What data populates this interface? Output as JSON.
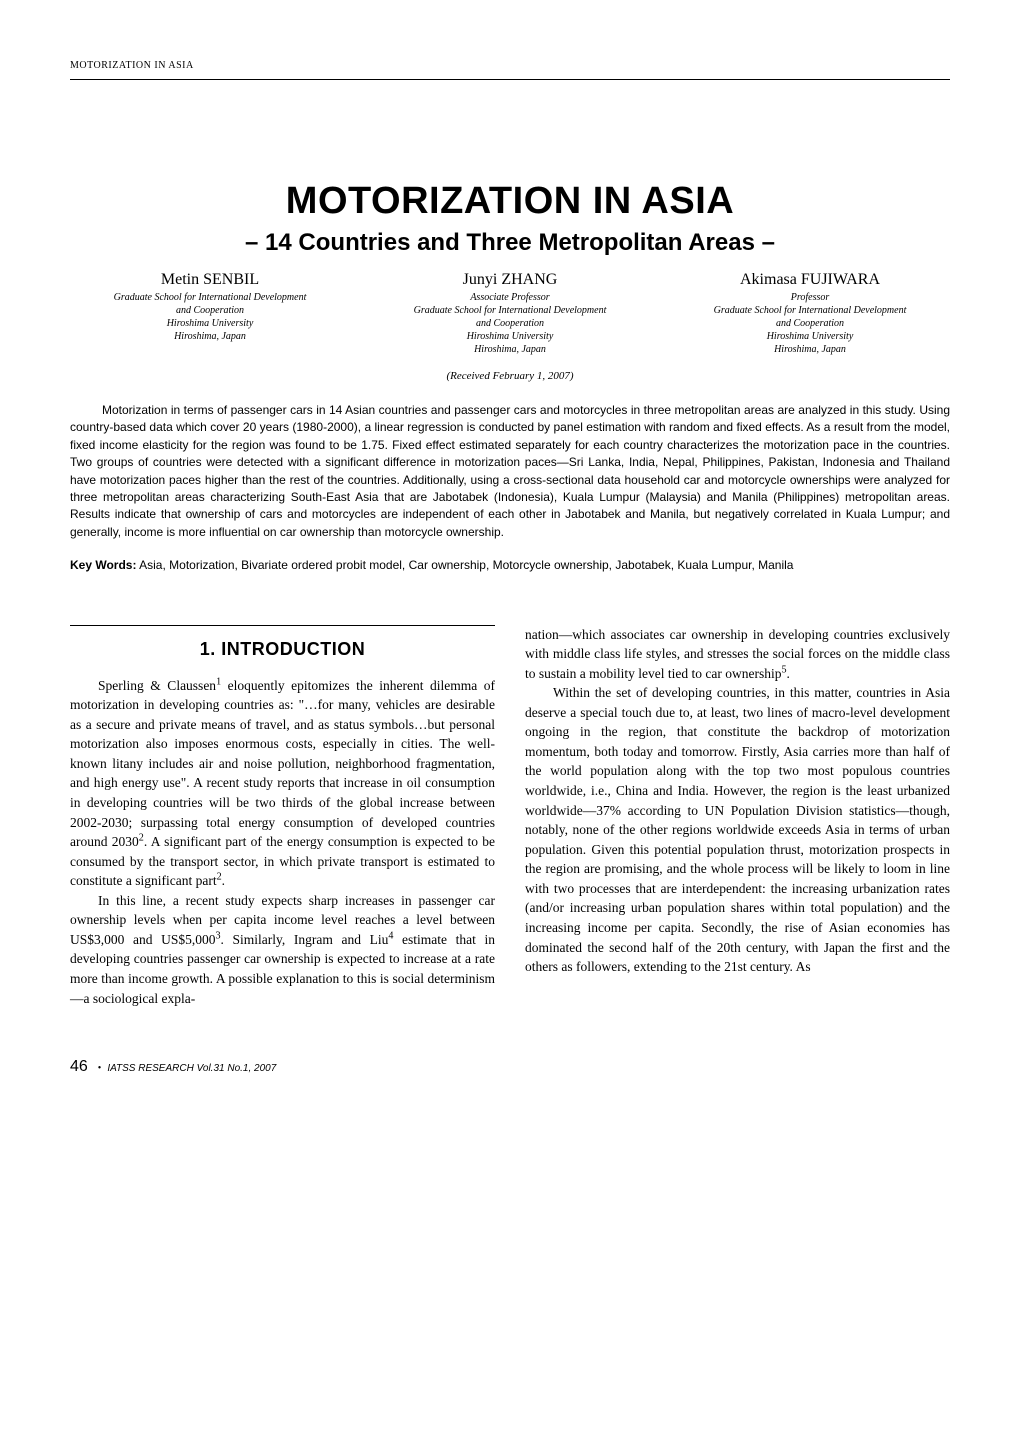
{
  "running_header": "MOTORIZATION IN ASIA",
  "title": "MOTORIZATION IN ASIA",
  "subtitle": "– 14 Countries and Three Metropolitan Areas –",
  "authors": [
    {
      "name": "Metin SENBIL",
      "role": "",
      "affil_lines": [
        "Graduate School for International Development",
        "and Cooperation",
        "Hiroshima University",
        "Hiroshima, Japan"
      ]
    },
    {
      "name": "Junyi ZHANG",
      "role": "Associate Professor",
      "affil_lines": [
        "Graduate School for International Development",
        "and Cooperation",
        "Hiroshima University",
        "Hiroshima, Japan"
      ]
    },
    {
      "name": "Akimasa FUJIWARA",
      "role": "Professor",
      "affil_lines": [
        "Graduate School for International Development",
        "and Cooperation",
        "Hiroshima University",
        "Hiroshima, Japan"
      ]
    }
  ],
  "received": "(Received February 1, 2007)",
  "abstract": "Motorization in terms of passenger cars in 14 Asian countries and passenger cars and motorcycles in three metropolitan areas are analyzed in this study. Using country-based data which cover 20 years (1980-2000), a linear regression is conducted by panel estimation with random and fixed effects. As a result from the model, fixed income elasticity for the region was found to be 1.75. Fixed effect estimated separately for each country characterizes the motorization pace in the countries. Two groups of countries were detected with a significant difference in motorization paces—Sri Lanka, India, Nepal, Philippines, Pakistan, Indonesia and Thailand have motorization paces higher than the rest of the countries. Additionally, using a cross-sectional data household car and motorcycle ownerships were analyzed for three metropolitan areas characterizing South-East Asia that are Jabotabek (Indonesia), Kuala Lumpur (Malaysia) and Manila (Philippines) metropolitan areas. Results indicate that ownership of cars and motorcycles are independent of each other in Jabotabek and Manila, but negatively correlated in Kuala Lumpur; and generally, income is more influential on car ownership than motorcycle ownership.",
  "keywords_label": "Key Words:",
  "keywords_text": "Asia, Motorization, Bivariate ordered probit model, Car ownership, Motorcycle ownership, Jabotabek, Kuala Lumpur, Manila",
  "section_heading": "1. INTRODUCTION",
  "col1": {
    "p1_pre": "Sperling & Claussen",
    "p1_sup": "1",
    "p1_post": " eloquently epitomizes the inherent dilemma of motorization in developing countries as: \"…for many, vehicles are desirable as a secure and private means of travel, and as status symbols…but personal motorization also imposes enormous costs, especially in cities. The well-known litany includes air and noise pollution, neighborhood fragmentation, and high energy use\". A recent study reports that increase in oil consumption in developing countries will be two thirds of the global increase between 2002-2030; surpassing total energy consumption of developed countries around 2030",
    "p1_sup2": "2",
    "p1_post2": ". A significant part of the energy consumption is expected to be consumed by the transport sector, in which private transport is estimated to constitute a significant part",
    "p1_sup3": "2",
    "p1_post3": ".",
    "p2_pre": "In this line, a recent study expects sharp increases in passenger car ownership levels when per capita income level reaches a level between US$3,000 and US$5,000",
    "p2_sup": "3",
    "p2_mid": ". Similarly, Ingram and Liu",
    "p2_sup2": "4",
    "p2_post": " estimate that in developing countries passenger car ownership is expected to increase at a rate more than income growth. A possible explanation to this is social determinism—a sociological expla-"
  },
  "col2": {
    "p1": "nation—which associates car ownership in developing countries exclusively with middle class life styles, and stresses the social forces on the middle class to sustain a mobility level tied to car ownership",
    "p1_sup": "5",
    "p1_post": ".",
    "p2": "Within the set of developing countries, in this matter, countries in Asia deserve a special touch due to, at least, two lines of macro-level development ongoing in the region, that constitute the backdrop of motorization momentum, both today and tomorrow. Firstly, Asia carries more than half of the world population along with the top two most populous countries worldwide, i.e., China and India. However, the region is the least urbanized worldwide—37% according to UN Population Division statistics—though, notably, none of the other regions worldwide exceeds Asia in terms of urban population. Given this potential population thrust, motorization prospects in the region are promising, and the whole process will be likely to loom in line with two processes that are interdependent: the increasing urbanization rates (and/or increasing urban population shares within total population) and the increasing income per capita. Secondly, the rise of Asian economies has dominated the second half of the 20th century, with Japan the first and the others as followers, extending to the 21st century. As"
  },
  "footer": {
    "page_num": "46",
    "bullet": "•",
    "journal": "IATSS RESEARCH Vol.31 No.1, 2007"
  },
  "styles": {
    "background_color": "#ffffff",
    "text_color": "#000000",
    "title_fontsize": 38,
    "subtitle_fontsize": 24,
    "body_fontsize": 13.5,
    "abstract_fontsize": 12,
    "section_heading_fontsize": 18,
    "author_name_fontsize": 16,
    "affil_fontsize": 10
  }
}
